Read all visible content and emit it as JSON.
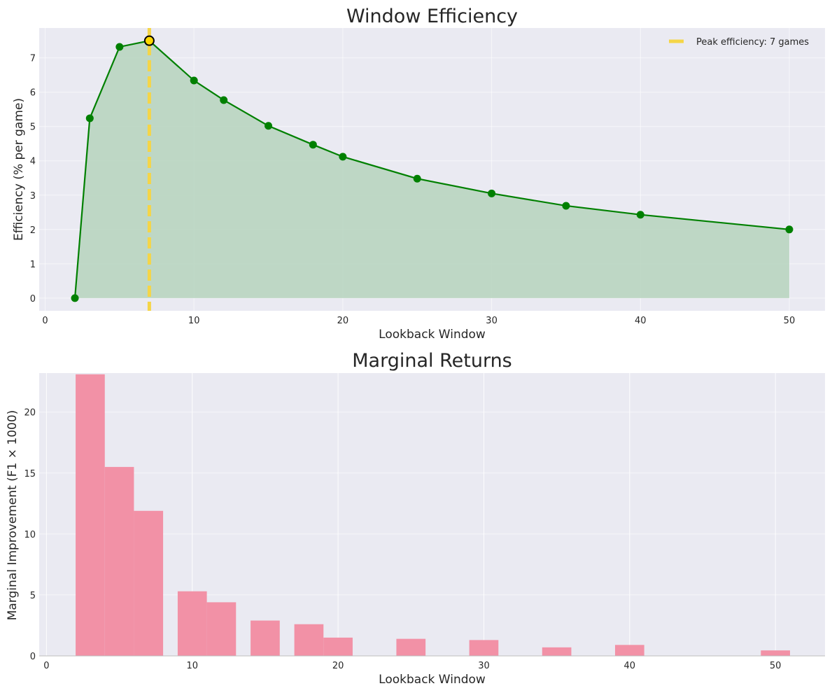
{
  "colors": {
    "panel_bg": "#eaeaf2",
    "grid": "#ffffff",
    "line": "#008000",
    "fill": "#b9d5c0",
    "peak_line": "#f5d547",
    "peak_marker_fill": "#ffd700",
    "peak_marker_edge": "#000000",
    "bar": "#f291a6"
  },
  "chart_data": [
    {
      "type": "line",
      "title": "Window Efficiency",
      "xlabel": "Lookback Window",
      "ylabel": "Efficiency (% per game)",
      "xlim": [
        -0.4,
        52.4
      ],
      "ylim": [
        -0.37,
        7.87
      ],
      "xticks": [
        "0",
        "10",
        "20",
        "30",
        "40",
        "50"
      ],
      "yticks": [
        "0",
        "1",
        "2",
        "3",
        "4",
        "5",
        "6",
        "7"
      ],
      "grid": true,
      "filled_area": true,
      "x": [
        2,
        3,
        5,
        7,
        10,
        12,
        15,
        18,
        20,
        25,
        30,
        35,
        40,
        50
      ],
      "y": [
        0,
        5.24,
        7.32,
        7.5,
        6.34,
        5.77,
        5.02,
        4.47,
        4.12,
        3.48,
        3.05,
        2.69,
        2.43,
        2.0
      ],
      "peak": {
        "x": 7,
        "y": 7.5
      },
      "legend": {
        "position": "top-right",
        "entries": [
          "Peak efficiency: 7 games"
        ]
      }
    },
    {
      "type": "bar",
      "title": "Marginal Returns",
      "xlabel": "Lookback Window",
      "ylabel": "Marginal Improvement (F1 × 1000)",
      "xlim": [
        -0.5,
        53.4
      ],
      "ylim": [
        0,
        23.2
      ],
      "xticks": [
        "0",
        "10",
        "20",
        "30",
        "40",
        "50"
      ],
      "yticks": [
        "0",
        "5",
        "10",
        "15",
        "20"
      ],
      "grid": true,
      "bar_width": 2,
      "bars": [
        {
          "x": 3,
          "value": 23.1
        },
        {
          "x": 5,
          "value": 15.5
        },
        {
          "x": 7,
          "value": 11.9
        },
        {
          "x": 10,
          "value": 5.3
        },
        {
          "x": 12,
          "value": 4.4
        },
        {
          "x": 15,
          "value": 2.9
        },
        {
          "x": 18,
          "value": 2.6
        },
        {
          "x": 20,
          "value": 1.5
        },
        {
          "x": 25,
          "value": 1.4
        },
        {
          "x": 30,
          "value": 1.3
        },
        {
          "x": 35,
          "value": 0.7
        },
        {
          "x": 40,
          "value": 0.9
        },
        {
          "x": 50,
          "value": 0.45
        }
      ]
    }
  ]
}
